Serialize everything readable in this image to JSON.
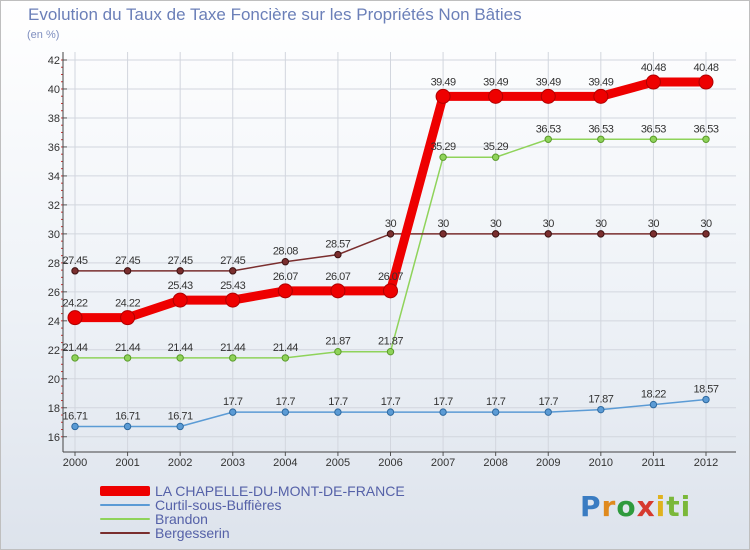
{
  "chart_data": {
    "type": "line",
    "title": "Evolution du Taux de Taxe Foncière sur les Propriétés Non Bâties",
    "ylabel": "(en %)",
    "xlabel": "",
    "x": [
      "2000",
      "2001",
      "2002",
      "2003",
      "2004",
      "2005",
      "2006",
      "2007",
      "2008",
      "2009",
      "2010",
      "2011",
      "2012"
    ],
    "ylim": [
      15.5,
      42
    ],
    "yticks": [
      16,
      18,
      20,
      22,
      24,
      26,
      28,
      30,
      32,
      34,
      36,
      38,
      40,
      42
    ],
    "series": [
      {
        "name": "LA CHAPELLE-DU-MONT-DE-FRANCE",
        "color": "#ee0000",
        "values": [
          24.22,
          24.22,
          25.43,
          25.43,
          26.07,
          26.07,
          26.07,
          39.49,
          39.49,
          39.49,
          39.49,
          40.48,
          40.48
        ],
        "labels": [
          "24.22",
          "24.22",
          "25.43",
          "25.43",
          "26.07",
          "26.07",
          "26.07",
          "39.49",
          "39.49",
          "39.49",
          "39.49",
          "40.48",
          "40.48"
        ]
      },
      {
        "name": "Curtil-sous-Buffières",
        "color": "#5b9bd5",
        "values": [
          16.71,
          16.71,
          16.71,
          17.7,
          17.7,
          17.7,
          17.7,
          17.7,
          17.7,
          17.7,
          17.87,
          18.22,
          18.57
        ],
        "labels": [
          "16.71",
          "16.71",
          "16.71",
          "17.7",
          "17.7",
          "17.7",
          "17.7",
          "17.7",
          "17.7",
          "17.7",
          "17.87",
          "18.22",
          "18.57"
        ]
      },
      {
        "name": "Brandon",
        "color": "#8fd35a",
        "values": [
          21.44,
          21.44,
          21.44,
          21.44,
          21.44,
          21.87,
          21.87,
          35.29,
          35.29,
          36.53,
          36.53,
          36.53,
          36.53
        ],
        "labels": [
          "21.44",
          "21.44",
          "21.44",
          "21.44",
          "21.44",
          "21.87",
          "21.87",
          "35.29",
          "35.29",
          "36.53",
          "36.53",
          "36.53",
          "36.53"
        ]
      },
      {
        "name": "Bergesserin",
        "color": "#7a2e2e",
        "values": [
          27.45,
          27.45,
          27.45,
          27.45,
          28.08,
          28.57,
          30,
          30,
          30,
          30,
          30,
          30,
          30
        ],
        "labels": [
          "27.45",
          "27.45",
          "27.45",
          "27.45",
          "28.08",
          "28.57",
          "30",
          "30",
          "30",
          "30",
          "30",
          "30",
          "30"
        ]
      }
    ],
    "legend": {
      "placement": "bottom-left",
      "items": [
        "LA CHAPELLE-DU-MONT-DE-FRANCE",
        "Curtil-sous-Buffières",
        "Brandon",
        "Bergesserin"
      ]
    }
  },
  "logo": {
    "parts": [
      "P",
      "r",
      "o",
      "x",
      "i",
      "ti"
    ]
  }
}
